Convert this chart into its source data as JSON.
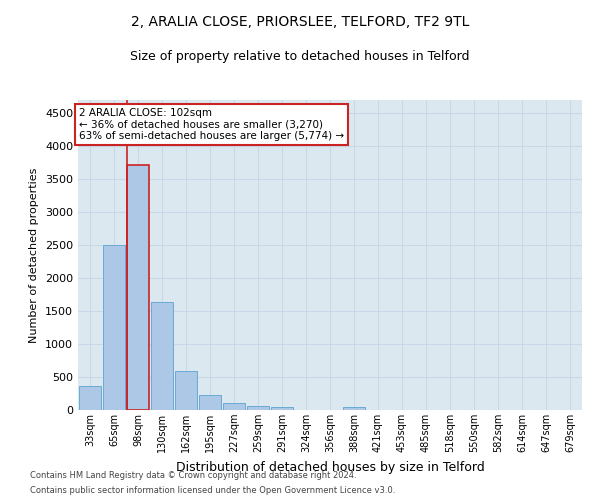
{
  "title1": "2, ARALIA CLOSE, PRIORSLEE, TELFORD, TF2 9TL",
  "title2": "Size of property relative to detached houses in Telford",
  "xlabel": "Distribution of detached houses by size in Telford",
  "ylabel": "Number of detached properties",
  "footnote1": "Contains HM Land Registry data © Crown copyright and database right 2024.",
  "footnote2": "Contains public sector information licensed under the Open Government Licence v3.0.",
  "categories": [
    "33sqm",
    "65sqm",
    "98sqm",
    "130sqm",
    "162sqm",
    "195sqm",
    "227sqm",
    "259sqm",
    "291sqm",
    "324sqm",
    "356sqm",
    "388sqm",
    "421sqm",
    "453sqm",
    "485sqm",
    "518sqm",
    "550sqm",
    "582sqm",
    "614sqm",
    "647sqm",
    "679sqm"
  ],
  "values": [
    370,
    2500,
    3720,
    1630,
    590,
    220,
    105,
    60,
    40,
    0,
    0,
    50,
    0,
    0,
    0,
    0,
    0,
    0,
    0,
    0,
    0
  ],
  "bar_color": "#adc8e6",
  "bar_edge_color": "#6aaad4",
  "highlight_bar_index": 2,
  "highlight_bar_edge_color": "#cc2222",
  "annotation_text": "2 ARALIA CLOSE: 102sqm\n← 36% of detached houses are smaller (3,270)\n63% of semi-detached houses are larger (5,774) →",
  "annotation_box_color": "#ffffff",
  "annotation_box_edge_color": "#cc2222",
  "ylim": [
    0,
    4700
  ],
  "yticks": [
    0,
    500,
    1000,
    1500,
    2000,
    2500,
    3000,
    3500,
    4000,
    4500
  ],
  "grid_color": "#c8d8e8",
  "bg_color": "#dce8f0",
  "title_fontsize": 10,
  "subtitle_fontsize": 9,
  "tick_fontsize": 7,
  "ylabel_fontsize": 8,
  "xlabel_fontsize": 9
}
